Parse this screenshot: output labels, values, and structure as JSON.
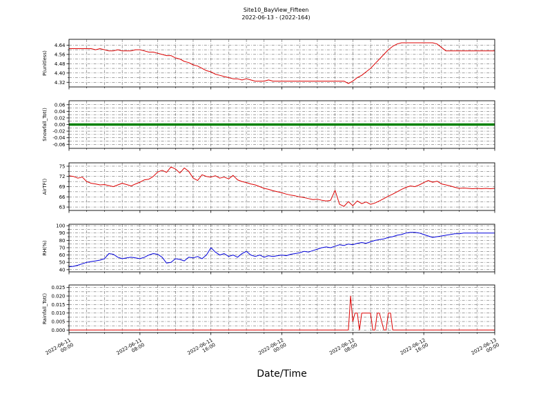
{
  "chart_data": {
    "type": "line",
    "title": "Site10_BayView_Fifteen",
    "subtitle": "2022-06-13 - (2022-164)",
    "xlabel": "Date/Time",
    "x_unit": "hours since 2022-06-11 00:00",
    "xlim": [
      0,
      48
    ],
    "grid": "dash-dot both axes",
    "legend": "none",
    "xticks": [
      0,
      8,
      16,
      24,
      32,
      40,
      48
    ],
    "xticklabels": [
      [
        "2022-06-11",
        "00:00"
      ],
      [
        "2022-06-11",
        "08:00"
      ],
      [
        "2022-06-11",
        "16:00"
      ],
      [
        "2022-06-12",
        "00:00"
      ],
      [
        "2022-06-12",
        "08:00"
      ],
      [
        "2022-06-12",
        "16:00"
      ],
      [
        "2022-06-13",
        "00:00"
      ]
    ],
    "panels": [
      {
        "ylabel": "P(unitless)",
        "color": "#dd0000",
        "linewidth": 1,
        "ylim": [
          4.28,
          4.69
        ],
        "yticks": [
          4.32,
          4.4,
          4.48,
          4.56,
          4.64
        ],
        "yticklabels": [
          "4.32",
          "4.40",
          "4.48",
          "4.56",
          "4.64"
        ],
        "x_start": 0,
        "x_step": 0.5,
        "y": [
          4.61,
          4.61,
          4.61,
          4.61,
          4.61,
          4.61,
          4.6,
          4.61,
          4.6,
          4.59,
          4.59,
          4.6,
          4.59,
          4.59,
          4.59,
          4.6,
          4.6,
          4.59,
          4.58,
          4.58,
          4.57,
          4.56,
          4.55,
          4.55,
          4.53,
          4.52,
          4.5,
          4.49,
          4.47,
          4.46,
          4.44,
          4.42,
          4.41,
          4.39,
          4.38,
          4.37,
          4.36,
          4.35,
          4.35,
          4.34,
          4.35,
          4.34,
          4.33,
          4.33,
          4.33,
          4.34,
          4.33,
          4.33,
          4.33,
          4.33,
          4.33,
          4.33,
          4.33,
          4.33,
          4.33,
          4.33,
          4.33,
          4.33,
          4.33,
          4.33,
          4.33,
          4.33,
          4.33,
          4.31,
          4.33,
          4.36,
          4.38,
          4.41,
          4.44,
          4.48,
          4.52,
          4.56,
          4.6,
          4.63,
          4.65,
          4.66,
          4.66,
          4.66,
          4.66,
          4.66,
          4.66,
          4.66,
          4.66,
          4.65,
          4.62,
          4.59,
          4.59,
          4.59,
          4.59,
          4.59,
          4.59,
          4.59,
          4.59,
          4.59,
          4.59,
          4.59,
          4.59
        ]
      },
      {
        "ylabel": "Snowfall_Tot()",
        "color": "#008000",
        "linewidth": 3.5,
        "ylim": [
          -0.072,
          0.072
        ],
        "yticks": [
          -0.06,
          -0.04,
          -0.02,
          0.0,
          0.02,
          0.04,
          0.06
        ],
        "yticklabels": [
          "-0.06",
          "-0.04",
          "-0.02",
          "0.00",
          "0.02",
          "0.04",
          "0.06"
        ],
        "x": [
          0,
          48
        ],
        "y": [
          0.0,
          0.0
        ]
      },
      {
        "ylabel": "AirTF()",
        "color": "#dd0000",
        "linewidth": 1,
        "ylim": [
          62,
          76
        ],
        "yticks": [
          63,
          66,
          69,
          72,
          75
        ],
        "yticklabels": [
          "63",
          "66",
          "69",
          "72",
          "75"
        ],
        "x_start": 0,
        "x_step": 0.5,
        "y": [
          72.2,
          72.0,
          71.5,
          71.8,
          70.5,
          70.0,
          69.8,
          69.5,
          69.6,
          69.3,
          69.0,
          69.5,
          70.0,
          69.6,
          69.2,
          69.8,
          70.3,
          71.0,
          71.2,
          72.0,
          73.3,
          73.8,
          73.2,
          74.8,
          74.2,
          73.0,
          74.5,
          73.5,
          71.5,
          70.8,
          72.5,
          72.0,
          71.8,
          72.2,
          71.5,
          71.8,
          71.3,
          72.3,
          71.0,
          70.5,
          70.2,
          69.8,
          69.5,
          69.0,
          68.5,
          68.2,
          67.8,
          67.5,
          67.2,
          66.8,
          66.5,
          66.3,
          66.0,
          65.8,
          65.5,
          65.2,
          65.3,
          65.0,
          64.8,
          65.0,
          67.9,
          63.8,
          63.2,
          64.6,
          63.4,
          64.8,
          64.0,
          64.5,
          63.8,
          64.2,
          64.8,
          65.5,
          66.2,
          66.8,
          67.5,
          68.2,
          68.8,
          69.2,
          69.0,
          69.5,
          70.2,
          70.8,
          70.3,
          70.6,
          69.8,
          69.5,
          69.2,
          68.8,
          68.5,
          68.6,
          68.5,
          68.4,
          68.5,
          68.4,
          68.5,
          68.4,
          68.5
        ]
      },
      {
        "ylabel": "RH(%)",
        "color": "#0000dd",
        "linewidth": 1,
        "ylim": [
          37,
          102
        ],
        "yticks": [
          40,
          50,
          60,
          70,
          80,
          90,
          100
        ],
        "yticklabels": [
          "40",
          "50",
          "60",
          "70",
          "80",
          "90",
          "100"
        ],
        "x_start": 0,
        "x_step": 0.5,
        "y": [
          44,
          44.5,
          46,
          48,
          50,
          51,
          52,
          53,
          55,
          62,
          61,
          57,
          55,
          56,
          57,
          56,
          55,
          57,
          60,
          62,
          61,
          57,
          49,
          50,
          55,
          54,
          52,
          57,
          56,
          58,
          55,
          60,
          70,
          64,
          60,
          62,
          58,
          60,
          57,
          62,
          65,
          60,
          58,
          60,
          57,
          59,
          58,
          59,
          60,
          59,
          61,
          62,
          63,
          65,
          64,
          66,
          68,
          70,
          71,
          70,
          72,
          74,
          73,
          75,
          74,
          76,
          77,
          76,
          78,
          80,
          81,
          82,
          84,
          85,
          87,
          88,
          90,
          91,
          91,
          90,
          88,
          86,
          84,
          85,
          86,
          87,
          88,
          89,
          89,
          90,
          90,
          90,
          90,
          90,
          90,
          90,
          90
        ]
      },
      {
        "ylabel": "Rainfall_Tot()",
        "color": "#dd0000",
        "linewidth": 1,
        "ylim": [
          -0.0015,
          0.0265
        ],
        "yticks": [
          0.0,
          0.005,
          0.01,
          0.015,
          0.02,
          0.025
        ],
        "yticklabels": [
          "0.000",
          "0.005",
          "0.010",
          "0.015",
          "0.020",
          "0.025"
        ],
        "x": [
          0,
          31.5,
          31.75,
          32,
          32.25,
          32.5,
          32.75,
          33,
          33.25,
          33.5,
          34,
          34.25,
          34.5,
          34.75,
          35,
          35.5,
          35.75,
          36,
          36.25,
          36.5,
          37,
          48
        ],
        "y": [
          0,
          0,
          0.02,
          0.005,
          0.01,
          0.01,
          0,
          0.01,
          0.01,
          0.01,
          0.01,
          0,
          0,
          0.01,
          0.01,
          0,
          0,
          0.01,
          0.01,
          0,
          0,
          0
        ]
      }
    ]
  }
}
